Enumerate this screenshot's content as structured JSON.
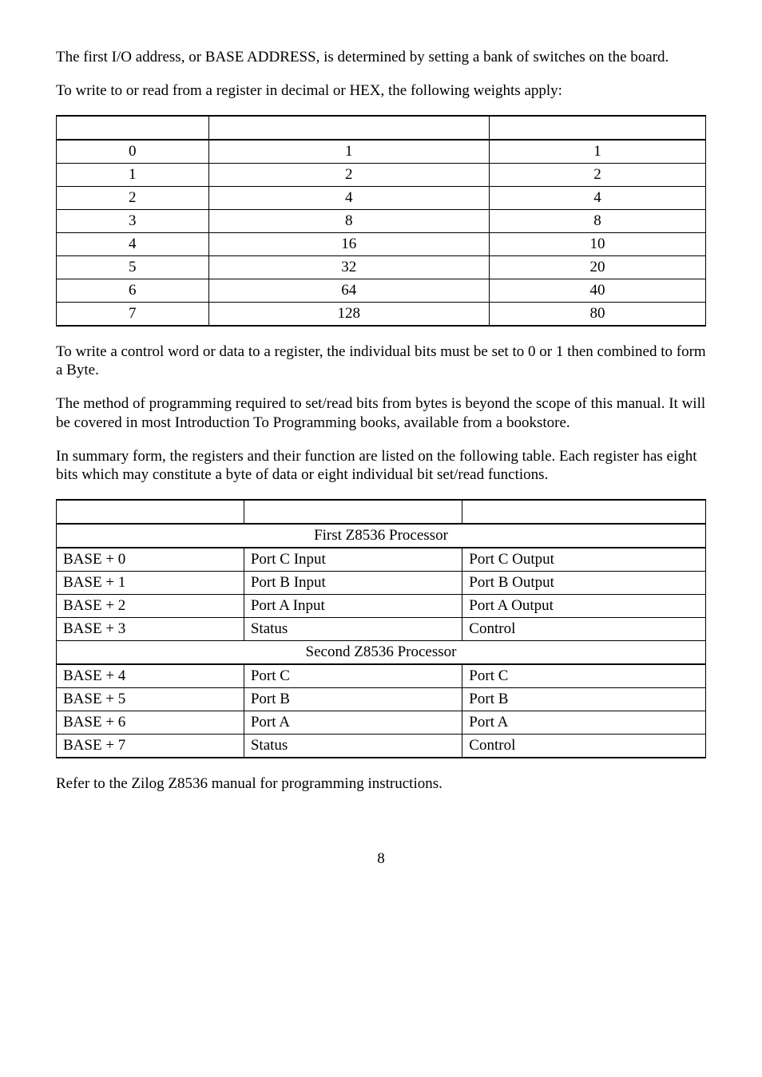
{
  "para1": "The first I/O address, or BASE ADDRESS, is determined by setting a bank of switches on the board.",
  "para2": "To write to or read from a register in decimal or HEX, the following weights apply:",
  "table1": {
    "headers": [
      "",
      "",
      ""
    ],
    "rows": [
      [
        "0",
        "1",
        "1"
      ],
      [
        "1",
        "2",
        "2"
      ],
      [
        "2",
        "4",
        "4"
      ],
      [
        "3",
        "8",
        "8"
      ],
      [
        "4",
        "16",
        "10"
      ],
      [
        "5",
        "32",
        "20"
      ],
      [
        "6",
        "64",
        "40"
      ],
      [
        "7",
        "128",
        "80"
      ]
    ],
    "border_color": "#000000",
    "text_align": "center"
  },
  "para3": "To write a control word or data to a register, the individual bits must be set to 0 or 1 then combined to form a Byte.",
  "para4": "The method of programming required to set/read bits from bytes is beyond the scope of this manual.  It will be covered in most Introduction To Programming books, available from a bookstore.",
  "para5": "In summary form, the registers and their function are listed on the following table.  Each register has eight bits which may constitute a byte of data or eight individual bit set/read functions.",
  "table2": {
    "headers": [
      "",
      "",
      ""
    ],
    "section1": "First Z8536 Processor",
    "rows1": [
      [
        "BASE + 0",
        "Port C Input",
        "Port C Output"
      ],
      [
        "BASE + 1",
        "Port B Input",
        "Port B Output"
      ],
      [
        "BASE + 2",
        "Port A Input",
        "Port A Output"
      ],
      [
        "BASE + 3",
        "Status",
        "Control"
      ]
    ],
    "section2": "Second Z8536 Processor",
    "rows2": [
      [
        "BASE + 4",
        "Port C",
        "Port C"
      ],
      [
        "BASE + 5",
        "Port B",
        "Port B"
      ],
      [
        "BASE + 6",
        "Port A",
        "Port A"
      ],
      [
        "BASE + 7",
        "Status",
        "Control"
      ]
    ],
    "border_color": "#000000",
    "text_align": "left"
  },
  "para6": "Refer to the Zilog Z8536 manual for programming instructions.",
  "page_number": "8",
  "font_family": "Times New Roman",
  "font_size_pt": 14,
  "text_color": "#000000",
  "background_color": "#ffffff"
}
